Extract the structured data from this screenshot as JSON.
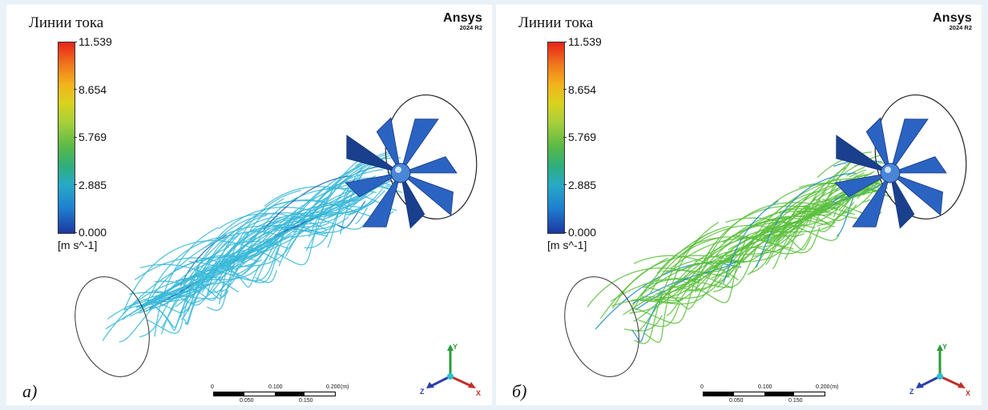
{
  "legend": {
    "title": "Линии тока",
    "ticks": [
      "11.539",
      "8.654",
      "5.769",
      "2.885",
      "0.000"
    ],
    "unit": "[m s^-1]"
  },
  "brand": {
    "name": "Ansys",
    "version": "2024 R2"
  },
  "scale_bar": {
    "top_labels": [
      "0",
      "0.100",
      "0.200"
    ],
    "unit": "(m)",
    "bottom_labels": [
      "0.050",
      "0.150"
    ]
  },
  "axes": {
    "x": "X",
    "y": "Y",
    "z": "Z"
  },
  "panels": [
    {
      "letter": "а)",
      "streamline_color": "#3ab8d8",
      "streamline_dark": "#1f5fb0"
    },
    {
      "letter": "б)",
      "streamline_color": "#5cc03c",
      "streamline_dark": "#1f88c8"
    }
  ],
  "colors": {
    "fan_blade": "#2b63c2",
    "fan_blade_dark": "#1a3f8c",
    "colormap_max": "#e8231a",
    "colormap_min": "#1c37a1"
  }
}
